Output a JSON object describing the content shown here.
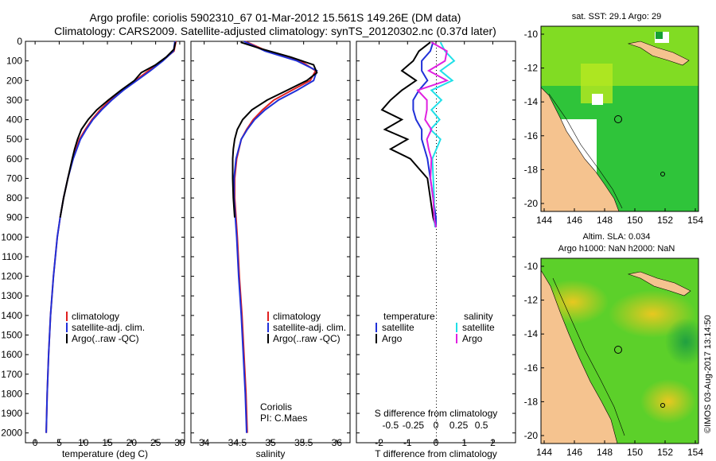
{
  "header": {
    "line1": "Argo profile: coriolis 5902310_67 01-Mar-2012 15.561S 149.26E (DM data)",
    "line2": "Climatology: CARS2009. Satellite-adjusted climatology: synTS_20120302.nc (0.37d later)"
  },
  "depth_ticks": [
    "0",
    "100",
    "200",
    "300",
    "400",
    "500",
    "600",
    "700",
    "800",
    "900",
    "1000",
    "1100",
    "1200",
    "1300",
    "1400",
    "1500",
    "1600",
    "1700",
    "1800",
    "1900",
    "2000"
  ],
  "colors": {
    "climatology": "#e02020",
    "satellite": "#2030d8",
    "argo": "#000000",
    "sat_sal": "#20e0e8",
    "argo_sal": "#e020e0"
  },
  "chart_data": [
    {
      "type": "line",
      "id": "temperature",
      "xlabel": "temperature (deg C)",
      "ylabel": "",
      "xlim": [
        -2,
        31
      ],
      "ylim": [
        2050,
        0
      ],
      "xticks": [
        0,
        5,
        10,
        15,
        20,
        25,
        30
      ],
      "xtick_labels": [
        "0",
        "5",
        "10",
        "15",
        "20",
        "25",
        "30"
      ],
      "legend": [
        "climatology",
        "satellite-adj. clim.",
        "Argo(..raw -QC)"
      ],
      "series": [
        {
          "name": "climatology",
          "depth": [
            0,
            50,
            100,
            150,
            200,
            250,
            300,
            350,
            400,
            450,
            500,
            600,
            700,
            800,
            900,
            1000,
            1200,
            1400,
            1600,
            1800,
            2000
          ],
          "values": [
            29.2,
            28.8,
            26.3,
            23.5,
            20.8,
            18.0,
            15.6,
            13.5,
            11.8,
            10.4,
            9.2,
            7.8,
            6.8,
            5.9,
            5.2,
            4.6,
            3.8,
            3.2,
            2.8,
            2.5,
            2.3
          ]
        },
        {
          "name": "satellite-adj. clim.",
          "depth": [
            0,
            50,
            100,
            150,
            200,
            250,
            300,
            350,
            400,
            450,
            500,
            600,
            700,
            800,
            900,
            1000,
            1200,
            1400,
            1600,
            1800,
            2000
          ],
          "values": [
            29.0,
            28.7,
            26.5,
            23.9,
            21.1,
            18.3,
            15.9,
            13.8,
            12.0,
            10.6,
            9.4,
            7.9,
            6.8,
            5.9,
            5.2,
            4.6,
            3.8,
            3.2,
            2.8,
            2.5,
            2.3
          ]
        },
        {
          "name": "Argo(..raw -QC)",
          "depth": [
            5,
            40,
            80,
            120,
            160,
            200,
            250,
            300,
            350,
            400,
            450,
            500,
            550,
            600,
            700,
            800,
            900
          ],
          "values": [
            29.1,
            28.8,
            27.2,
            25.0,
            22.0,
            20.6,
            17.8,
            15.2,
            12.8,
            11.0,
            9.6,
            8.8,
            8.2,
            7.7,
            6.8,
            5.9,
            5.2
          ]
        }
      ]
    },
    {
      "type": "line",
      "id": "salinity",
      "xlabel": "salinity",
      "ylabel": "",
      "xlim": [
        33.8,
        36.2
      ],
      "ylim": [
        2050,
        0
      ],
      "xticks": [
        34,
        34.5,
        35,
        35.5,
        36
      ],
      "xtick_labels": [
        "34",
        "34.5",
        "35",
        "35.5",
        "36"
      ],
      "legend": [
        "climatology",
        "satellite-adj. clim.",
        "Argo(..raw -QC)"
      ],
      "annotation": [
        "Coriolis",
        "PI: C.Maes"
      ],
      "series": [
        {
          "name": "climatology",
          "depth": [
            0,
            50,
            100,
            150,
            200,
            250,
            300,
            350,
            400,
            450,
            500,
            600,
            700,
            800,
            900,
            1000,
            1200,
            1400,
            1600,
            1800,
            2000
          ],
          "values": [
            34.62,
            34.95,
            35.45,
            35.68,
            35.6,
            35.32,
            35.05,
            34.88,
            34.74,
            34.64,
            34.56,
            34.49,
            34.46,
            34.46,
            34.48,
            34.5,
            34.53,
            34.57,
            34.6,
            34.63,
            34.65
          ]
        },
        {
          "name": "satellite-adj. clim.",
          "depth": [
            0,
            50,
            100,
            150,
            200,
            250,
            300,
            350,
            400,
            450,
            500,
            600,
            700,
            800,
            900,
            1000,
            1200,
            1400,
            1600,
            1800,
            2000
          ],
          "values": [
            34.6,
            34.92,
            35.4,
            35.7,
            35.65,
            35.4,
            35.12,
            34.92,
            34.76,
            34.65,
            34.56,
            34.48,
            34.45,
            34.45,
            34.47,
            34.49,
            34.52,
            34.56,
            34.59,
            34.62,
            34.64
          ]
        },
        {
          "name": "Argo(..raw -QC)",
          "depth": [
            5,
            40,
            80,
            120,
            160,
            200,
            250,
            300,
            350,
            400,
            450,
            500,
            550,
            600,
            700,
            800,
            900
          ],
          "values": [
            34.55,
            34.88,
            35.3,
            35.65,
            35.7,
            35.55,
            35.25,
            34.95,
            34.72,
            34.58,
            34.5,
            34.46,
            34.44,
            34.43,
            34.43,
            34.44,
            34.46
          ]
        }
      ]
    },
    {
      "type": "line",
      "id": "difference",
      "xlabel": "T difference from climatology",
      "xlabel_top": "S difference from climatology",
      "ylabel": "",
      "xlim": [
        -2.8,
        2.8
      ],
      "ylim": [
        2050,
        0
      ],
      "xticks": [
        -2,
        -1,
        0,
        1,
        2
      ],
      "xtick_labels": [
        "-2",
        "-1",
        "0",
        "1",
        "2"
      ],
      "s_xticks": [
        -0.5,
        -0.25,
        0,
        0.25,
        0.5
      ],
      "s_xtick_labels": [
        "-0.5",
        "-0.25",
        "0",
        "0.25",
        "0.5"
      ],
      "legend_temperature": {
        "title": "temperature",
        "items": [
          "satellite",
          "Argo"
        ]
      },
      "legend_salinity": {
        "title": "salinity",
        "items": [
          "satellite",
          "Argo"
        ]
      },
      "series": [
        {
          "name": "temperature satellite",
          "depth": [
            5,
            50,
            100,
            150,
            200,
            250,
            300,
            350,
            400,
            450,
            500,
            550,
            600,
            700,
            800,
            900,
            950
          ],
          "values": [
            -0.1,
            -0.2,
            -0.5,
            -0.5,
            -0.3,
            -0.6,
            -0.8,
            -0.8,
            -0.7,
            -0.5,
            -0.5,
            -0.4,
            -0.3,
            -0.2,
            -0.1,
            0.0,
            0.0
          ]
        },
        {
          "name": "temperature Argo",
          "depth": [
            5,
            50,
            100,
            150,
            200,
            250,
            300,
            350,
            400,
            450,
            500,
            550,
            600,
            650,
            700,
            800,
            900,
            950
          ],
          "values": [
            -0.2,
            -0.6,
            -0.8,
            -1.2,
            -0.7,
            -1.2,
            -1.6,
            -1.9,
            -1.2,
            -1.8,
            -1.0,
            -1.6,
            -0.9,
            -0.6,
            -0.3,
            -0.2,
            -0.1,
            0.0
          ]
        },
        {
          "name": "salinity satellite",
          "depth": [
            5,
            50,
            100,
            150,
            200,
            250,
            300,
            350,
            400,
            450,
            500,
            600,
            700,
            800,
            900,
            950
          ],
          "values": [
            0.05,
            0.1,
            0.2,
            0.05,
            0.18,
            -0.05,
            0.06,
            -0.05,
            0.04,
            -0.06,
            0.05,
            -0.04,
            -0.03,
            -0.02,
            -0.02,
            -0.01
          ]
        },
        {
          "name": "salinity Argo",
          "depth": [
            5,
            50,
            100,
            150,
            200,
            250,
            300,
            350,
            400,
            450,
            500,
            550,
            600,
            700,
            800,
            900,
            950
          ],
          "values": [
            -0.05,
            0.12,
            0.1,
            -0.08,
            0.12,
            -0.2,
            -0.1,
            -0.1,
            -0.12,
            -0.05,
            -0.1,
            -0.08,
            -0.05,
            -0.06,
            -0.03,
            -0.02,
            0.0
          ]
        }
      ]
    }
  ],
  "maps": {
    "sst": {
      "title": "sat. SST: 29.1 Argo: 29",
      "xticks": [
        "144",
        "146",
        "148",
        "150",
        "152",
        "154"
      ],
      "yticks": [
        "-10",
        "-12",
        "-14",
        "-16",
        "-18",
        "-20"
      ]
    },
    "sla": {
      "title1": "Altim. SLA: 0.034",
      "title2": "Argo h1000: NaN h2000: NaN",
      "xticks": [
        "144",
        "146",
        "148",
        "150",
        "152",
        "154"
      ],
      "yticks": [
        "-10",
        "-12",
        "-14",
        "-16",
        "-18",
        "-20"
      ]
    }
  },
  "watermark": "©IMOS 03-Aug-2017 13:14:50"
}
